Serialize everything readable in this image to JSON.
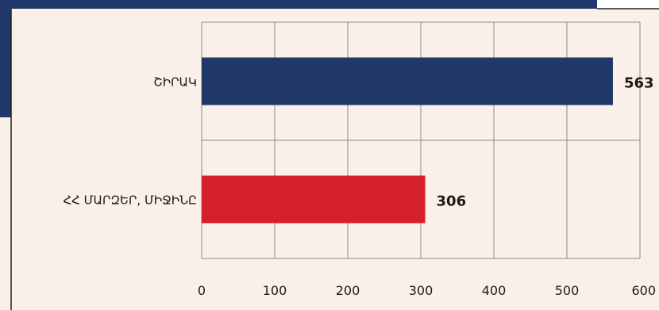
{
  "colors": {
    "panel_bg": "#fbf0e8",
    "banner": "#1f3868",
    "grid": "#8a8a8a",
    "border": "#222222",
    "text": "#1a1a1a"
  },
  "chart_data": {
    "type": "bar",
    "orientation": "horizontal",
    "categories": [
      "ՇԻՐԱԿ",
      "ՀՀ ՄԱՐԶԵՐ, ՄԻՋԻՆԸ"
    ],
    "values": [
      563,
      306
    ],
    "bar_colors": [
      "#1f3868",
      "#d5202a"
    ],
    "data_labels": [
      "563",
      "306"
    ],
    "x_ticks": [
      "0",
      "100",
      "200",
      "300",
      "400",
      "500",
      "600"
    ],
    "xlim": [
      0,
      600
    ],
    "grid": true,
    "legend": false
  }
}
